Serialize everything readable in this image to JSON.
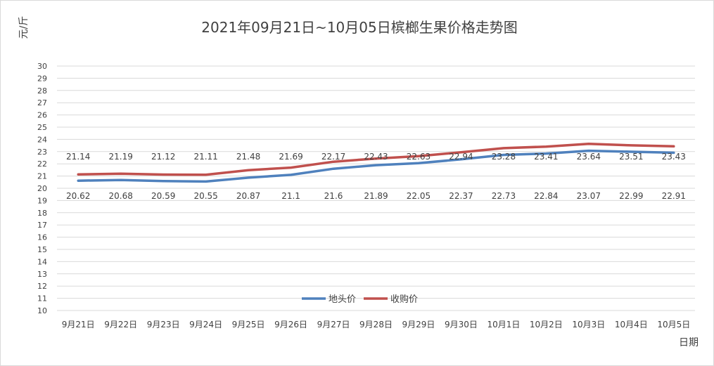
{
  "chart_data": {
    "type": "line",
    "title": "2021年09月21日~10月05日槟榔生果价格走势图",
    "ylabel": "元/斤",
    "xlabel": "日期",
    "ylim": [
      10,
      30
    ],
    "ytick_step": 1,
    "grid": true,
    "legend_position": "bottom-center",
    "categories": [
      "9月21日",
      "9月22日",
      "9月23日",
      "9月24日",
      "9月25日",
      "9月26日",
      "9月27日",
      "9月28日",
      "9月29日",
      "9月30日",
      "10月1日",
      "10月2日",
      "10月3日",
      "10月4日",
      "10月5日"
    ],
    "series": [
      {
        "name": "地头价",
        "color": "#4f81bd",
        "label_position": "below",
        "values": [
          20.62,
          20.68,
          20.59,
          20.55,
          20.87,
          21.1,
          21.6,
          21.89,
          22.05,
          22.37,
          22.73,
          22.84,
          23.07,
          22.99,
          22.91
        ]
      },
      {
        "name": "收购价",
        "color": "#c0504d",
        "label_position": "above",
        "values": [
          21.14,
          21.19,
          21.12,
          21.11,
          21.48,
          21.69,
          22.17,
          22.43,
          22.63,
          22.94,
          23.28,
          23.41,
          23.64,
          23.51,
          23.43
        ]
      }
    ]
  }
}
